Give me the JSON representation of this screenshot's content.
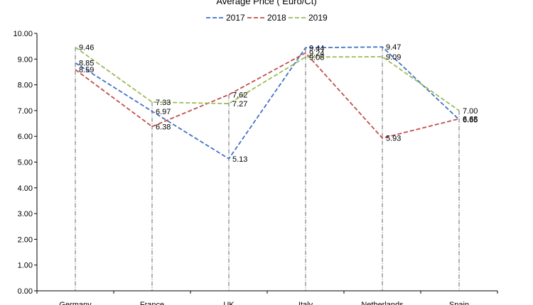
{
  "chart_data": {
    "type": "line",
    "title": "Average Price ( Euro/Ct)",
    "categories": [
      "Germany",
      "France",
      "UK",
      "Italy",
      "Netherlands",
      "Spain"
    ],
    "ylim": [
      0,
      10
    ],
    "yticks": [
      "0.00",
      "1.00",
      "2.00",
      "3.00",
      "4.00",
      "5.00",
      "6.00",
      "7.00",
      "8.00",
      "9.00",
      "10.00"
    ],
    "grid": "vertical dash-dot drop lines at categories",
    "legend": "top",
    "series": [
      {
        "name": "2017",
        "color": "#4472C4",
        "values": [
          8.85,
          6.97,
          5.13,
          9.44,
          9.47,
          6.65
        ],
        "labels": [
          "8.85",
          "6.97",
          "5.13",
          "9.44",
          "9.47",
          "6.65"
        ]
      },
      {
        "name": "2018",
        "color": "#C0504D",
        "values": [
          8.59,
          6.38,
          7.62,
          9.24,
          5.93,
          6.68
        ],
        "labels": [
          "8.59",
          "6.38",
          "7.62",
          "9.24",
          "5.93",
          "6.68"
        ]
      },
      {
        "name": "2019",
        "color": "#9BBB59",
        "values": [
          9.46,
          7.33,
          7.27,
          9.08,
          9.09,
          7.0
        ],
        "labels": [
          "9.46",
          "7.33",
          "7.27",
          "9.08",
          "9.09",
          "7.00"
        ]
      }
    ]
  }
}
